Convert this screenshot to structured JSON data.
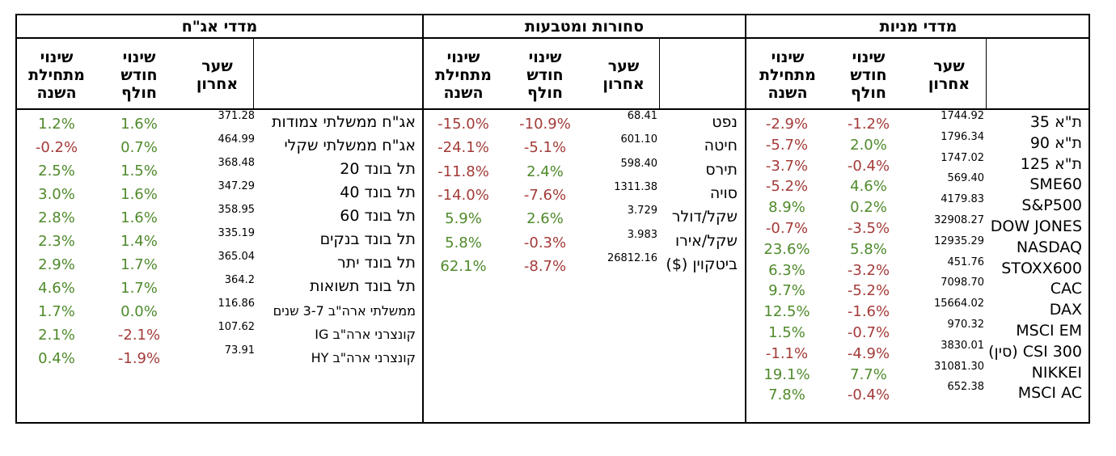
{
  "colors": {
    "positive": "#4f8a2b",
    "negative": "#a33b39",
    "border": "#000000"
  },
  "column_headers": {
    "last_rate": "שער\nאחרון",
    "month_change": "שינוי\nחודש\nחולף",
    "ytd_change": "שינוי\nמתחילת\nהשנה"
  },
  "sections": {
    "stocks": {
      "title": "מדדי מניות",
      "rows": [
        {
          "name": "ת\"א 35",
          "price": "1744.92",
          "month": "-1.2%",
          "ytd": "-2.9%"
        },
        {
          "name": "ת\"א 90",
          "price": "1796.34",
          "month": "2.0%",
          "ytd": "-5.7%"
        },
        {
          "name": "ת\"א 125",
          "price": "1747.02",
          "month": "-0.4%",
          "ytd": "-3.7%"
        },
        {
          "name": "SME60",
          "price": "569.40",
          "month": "4.6%",
          "ytd": "-5.2%"
        },
        {
          "name": "S&P500",
          "price": "4179.83",
          "month": "0.2%",
          "ytd": "8.9%"
        },
        {
          "name": "DOW JONES",
          "price": "32908.27",
          "month": "-3.5%",
          "ytd": "-0.7%"
        },
        {
          "name": "NASDAQ",
          "price": "12935.29",
          "month": "5.8%",
          "ytd": "23.6%"
        },
        {
          "name": "STOXX600",
          "price": "451.76",
          "month": "-3.2%",
          "ytd": "6.3%"
        },
        {
          "name": "CAC",
          "price": "7098.70",
          "month": "-5.2%",
          "ytd": "9.7%"
        },
        {
          "name": "DAX",
          "price": "15664.02",
          "month": "-1.6%",
          "ytd": "12.5%"
        },
        {
          "name": "MSCI EM",
          "price": "970.32",
          "month": "-0.7%",
          "ytd": "1.5%"
        },
        {
          "name": "CSI 300 (סין)",
          "price": "3830.01",
          "month": "-4.9%",
          "ytd": "-1.1%"
        },
        {
          "name": "NIKKEI",
          "price": "31081.30",
          "month": "7.7%",
          "ytd": "19.1%"
        },
        {
          "name": "MSCI AC",
          "price": "652.38",
          "month": "-0.4%",
          "ytd": "7.8%"
        }
      ]
    },
    "commodities": {
      "title": "סחורות ומטבעות",
      "rows": [
        {
          "name": "נפט",
          "price": "68.41",
          "month": "-10.9%",
          "ytd": "-15.0%"
        },
        {
          "name": "חיטה",
          "price": "601.10",
          "month": "-5.1%",
          "ytd": "-24.1%"
        },
        {
          "name": "תירס",
          "price": "598.40",
          "month": "2.4%",
          "ytd": "-11.8%"
        },
        {
          "name": "סויה",
          "price": "1311.38",
          "month": "-7.6%",
          "ytd": "-14.0%"
        },
        {
          "name": "שקל/דולר",
          "price": "3.729",
          "month": "2.6%",
          "ytd": "5.9%"
        },
        {
          "name": "שקל/אירו",
          "price": "3.983",
          "month": "-0.3%",
          "ytd": "5.8%"
        },
        {
          "name": "ביטקוין ($)",
          "price": "26812.16",
          "month": "-8.7%",
          "ytd": "62.1%"
        }
      ]
    },
    "bonds": {
      "title": "מדדי אג\"ח",
      "rows": [
        {
          "name": "אג\"ח ממשלתי צמודות",
          "price": "371.28",
          "month": "1.6%",
          "ytd": "1.2%"
        },
        {
          "name": "אג\"ח ממשלתי שקלי",
          "price": "464.99",
          "month": "0.7%",
          "ytd": "-0.2%"
        },
        {
          "name": "תל בונד 20",
          "price": "368.48",
          "month": "1.5%",
          "ytd": "2.5%"
        },
        {
          "name": "תל בונד 40",
          "price": "347.29",
          "month": "1.6%",
          "ytd": "3.0%"
        },
        {
          "name": "תל בונד 60",
          "price": "358.95",
          "month": "1.6%",
          "ytd": "2.8%"
        },
        {
          "name": "תל בונד בנקים",
          "price": "335.19",
          "month": "1.4%",
          "ytd": "2.3%"
        },
        {
          "name": "תל בונד יתר",
          "price": "365.04",
          "month": "1.7%",
          "ytd": "2.9%"
        },
        {
          "name": "תל בונד תשואות",
          "price": "364.2",
          "month": "1.7%",
          "ytd": "4.6%"
        },
        {
          "name": "ממשלתי ארה\"ב 3-7 שנים",
          "price": "116.86",
          "month": "0.0%",
          "ytd": "1.7%"
        },
        {
          "name": "קונצרני ארה\"ב IG",
          "price": "107.62",
          "month": "-2.1%",
          "ytd": "2.1%"
        },
        {
          "name": "קונצרני ארה\"ב HY",
          "price": "73.91",
          "month": "-1.9%",
          "ytd": "0.4%"
        }
      ]
    }
  }
}
